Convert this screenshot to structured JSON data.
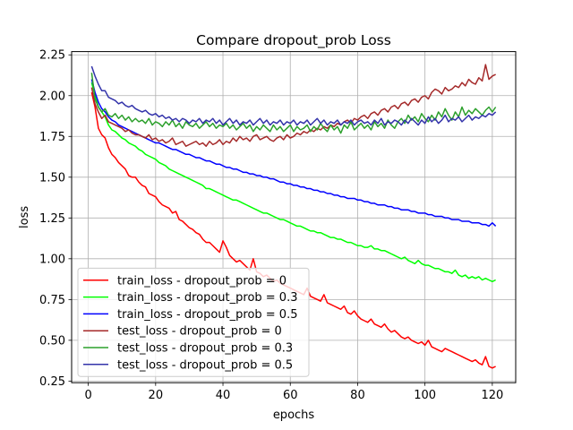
{
  "chart_data": {
    "type": "line",
    "title": "Compare dropout_prob Loss",
    "xlabel": "epochs",
    "ylabel": "loss",
    "xlim": [
      -4.95,
      126.95
    ],
    "ylim": [
      0.24,
      2.27
    ],
    "xticks": [
      0,
      20,
      40,
      60,
      80,
      100,
      120
    ],
    "yticks": [
      0.25,
      0.5,
      0.75,
      1.0,
      1.25,
      1.5,
      1.75,
      2.0,
      2.25
    ],
    "xtick_labels": [
      "0",
      "20",
      "40",
      "60",
      "80",
      "100",
      "120"
    ],
    "ytick_labels": [
      "0.25",
      "0.50",
      "0.75",
      "1.00",
      "1.25",
      "1.50",
      "1.75",
      "2.00",
      "2.25"
    ],
    "grid": true,
    "legend_position": "lower-left",
    "x_start": 1,
    "series": [
      {
        "name": "train_loss - dropout_prob = 0",
        "color": "#ff0000",
        "values": [
          2.02,
          1.93,
          1.8,
          1.76,
          1.74,
          1.68,
          1.64,
          1.62,
          1.59,
          1.57,
          1.55,
          1.51,
          1.5,
          1.5,
          1.47,
          1.45,
          1.44,
          1.4,
          1.39,
          1.38,
          1.35,
          1.33,
          1.32,
          1.31,
          1.28,
          1.29,
          1.24,
          1.23,
          1.21,
          1.19,
          1.18,
          1.16,
          1.15,
          1.12,
          1.1,
          1.1,
          1.08,
          1.06,
          1.04,
          1.11,
          1.07,
          1.02,
          1.0,
          0.98,
          0.99,
          0.97,
          0.95,
          0.93,
          1.0,
          0.92,
          0.91,
          0.89,
          0.9,
          0.88,
          0.86,
          0.87,
          0.85,
          0.84,
          0.83,
          0.82,
          0.81,
          0.8,
          0.79,
          0.78,
          0.82,
          0.77,
          0.76,
          0.75,
          0.74,
          0.78,
          0.73,
          0.72,
          0.71,
          0.7,
          0.69,
          0.71,
          0.67,
          0.66,
          0.68,
          0.65,
          0.63,
          0.62,
          0.61,
          0.63,
          0.6,
          0.59,
          0.58,
          0.6,
          0.57,
          0.55,
          0.56,
          0.54,
          0.52,
          0.51,
          0.52,
          0.5,
          0.49,
          0.48,
          0.49,
          0.47,
          0.5,
          0.46,
          0.45,
          0.44,
          0.43,
          0.45,
          0.44,
          0.43,
          0.42,
          0.41,
          0.4,
          0.39,
          0.38,
          0.37,
          0.38,
          0.36,
          0.35,
          0.4,
          0.34,
          0.33,
          0.34
        ]
      },
      {
        "name": "train_loss - dropout_prob = 0.3",
        "color": "#00ff00",
        "values": [
          2.08,
          2.0,
          1.93,
          1.9,
          1.87,
          1.82,
          1.79,
          1.78,
          1.76,
          1.74,
          1.73,
          1.71,
          1.7,
          1.69,
          1.67,
          1.66,
          1.64,
          1.63,
          1.62,
          1.61,
          1.59,
          1.58,
          1.57,
          1.55,
          1.54,
          1.53,
          1.52,
          1.51,
          1.5,
          1.49,
          1.48,
          1.47,
          1.46,
          1.45,
          1.43,
          1.43,
          1.42,
          1.41,
          1.4,
          1.39,
          1.38,
          1.37,
          1.36,
          1.36,
          1.35,
          1.34,
          1.33,
          1.32,
          1.31,
          1.3,
          1.29,
          1.28,
          1.28,
          1.27,
          1.26,
          1.25,
          1.24,
          1.24,
          1.23,
          1.22,
          1.21,
          1.2,
          1.2,
          1.19,
          1.18,
          1.17,
          1.17,
          1.16,
          1.16,
          1.15,
          1.14,
          1.13,
          1.13,
          1.12,
          1.12,
          1.11,
          1.1,
          1.1,
          1.09,
          1.08,
          1.08,
          1.07,
          1.07,
          1.08,
          1.06,
          1.06,
          1.05,
          1.05,
          1.04,
          1.03,
          1.02,
          1.01,
          1.0,
          1.01,
          0.99,
          0.98,
          0.97,
          0.99,
          0.97,
          0.96,
          0.96,
          0.95,
          0.94,
          0.94,
          0.93,
          0.92,
          0.92,
          0.91,
          0.93,
          0.9,
          0.89,
          0.9,
          0.88,
          0.89,
          0.88,
          0.89,
          0.87,
          0.88,
          0.87,
          0.86,
          0.87
        ]
      },
      {
        "name": "train_loss - dropout_prob = 0.5",
        "color": "#0000ff",
        "values": [
          2.1,
          2.02,
          1.96,
          1.92,
          1.9,
          1.87,
          1.85,
          1.84,
          1.82,
          1.81,
          1.8,
          1.79,
          1.78,
          1.77,
          1.76,
          1.75,
          1.74,
          1.73,
          1.72,
          1.71,
          1.71,
          1.7,
          1.69,
          1.68,
          1.67,
          1.67,
          1.66,
          1.65,
          1.64,
          1.64,
          1.63,
          1.62,
          1.62,
          1.61,
          1.6,
          1.6,
          1.59,
          1.58,
          1.58,
          1.57,
          1.56,
          1.56,
          1.55,
          1.55,
          1.54,
          1.53,
          1.53,
          1.52,
          1.52,
          1.51,
          1.51,
          1.5,
          1.5,
          1.49,
          1.49,
          1.48,
          1.47,
          1.47,
          1.46,
          1.46,
          1.45,
          1.45,
          1.44,
          1.44,
          1.43,
          1.43,
          1.42,
          1.42,
          1.41,
          1.41,
          1.4,
          1.4,
          1.39,
          1.39,
          1.38,
          1.38,
          1.37,
          1.37,
          1.37,
          1.36,
          1.36,
          1.35,
          1.35,
          1.34,
          1.34,
          1.33,
          1.33,
          1.33,
          1.32,
          1.32,
          1.31,
          1.31,
          1.3,
          1.3,
          1.3,
          1.29,
          1.29,
          1.28,
          1.28,
          1.28,
          1.27,
          1.27,
          1.26,
          1.26,
          1.26,
          1.25,
          1.25,
          1.24,
          1.24,
          1.24,
          1.23,
          1.23,
          1.23,
          1.22,
          1.22,
          1.22,
          1.21,
          1.21,
          1.2,
          1.22,
          1.2
        ]
      },
      {
        "name": "test_loss - dropout_prob = 0",
        "color": "#a52a2a",
        "values": [
          2.05,
          1.95,
          1.9,
          1.86,
          1.88,
          1.84,
          1.83,
          1.82,
          1.81,
          1.8,
          1.78,
          1.79,
          1.77,
          1.76,
          1.76,
          1.75,
          1.74,
          1.76,
          1.73,
          1.74,
          1.72,
          1.73,
          1.71,
          1.72,
          1.74,
          1.7,
          1.71,
          1.72,
          1.69,
          1.7,
          1.71,
          1.72,
          1.7,
          1.71,
          1.69,
          1.72,
          1.7,
          1.71,
          1.73,
          1.7,
          1.72,
          1.71,
          1.74,
          1.72,
          1.75,
          1.73,
          1.74,
          1.72,
          1.75,
          1.76,
          1.73,
          1.74,
          1.75,
          1.73,
          1.72,
          1.74,
          1.75,
          1.73,
          1.76,
          1.74,
          1.75,
          1.77,
          1.76,
          1.78,
          1.77,
          1.79,
          1.78,
          1.8,
          1.79,
          1.81,
          1.8,
          1.82,
          1.81,
          1.83,
          1.82,
          1.84,
          1.85,
          1.83,
          1.86,
          1.85,
          1.87,
          1.88,
          1.86,
          1.89,
          1.9,
          1.88,
          1.91,
          1.92,
          1.9,
          1.93,
          1.94,
          1.92,
          1.95,
          1.96,
          1.94,
          1.97,
          1.98,
          1.96,
          1.99,
          2.0,
          1.98,
          2.02,
          2.04,
          2.03,
          2.01,
          2.05,
          2.03,
          2.04,
          2.06,
          2.05,
          2.08,
          2.06,
          2.1,
          2.08,
          2.07,
          2.11,
          2.09,
          2.19,
          2.1,
          2.12,
          2.13
        ]
      },
      {
        "name": "test_loss - dropout_prob = 0.3",
        "color": "#2ca02c",
        "values": [
          2.14,
          1.98,
          1.93,
          1.9,
          1.92,
          1.88,
          1.87,
          1.89,
          1.86,
          1.88,
          1.85,
          1.87,
          1.84,
          1.86,
          1.84,
          1.85,
          1.83,
          1.86,
          1.82,
          1.84,
          1.83,
          1.81,
          1.84,
          1.82,
          1.85,
          1.81,
          1.83,
          1.8,
          1.84,
          1.82,
          1.81,
          1.83,
          1.8,
          1.82,
          1.84,
          1.81,
          1.83,
          1.8,
          1.82,
          1.81,
          1.83,
          1.8,
          1.82,
          1.79,
          1.81,
          1.83,
          1.8,
          1.82,
          1.78,
          1.81,
          1.79,
          1.82,
          1.8,
          1.78,
          1.82,
          1.79,
          1.81,
          1.78,
          1.8,
          1.82,
          1.78,
          1.81,
          1.79,
          1.8,
          1.82,
          1.78,
          1.81,
          1.79,
          1.83,
          1.8,
          1.78,
          1.82,
          1.79,
          1.81,
          1.77,
          1.82,
          1.8,
          1.84,
          1.79,
          1.81,
          1.83,
          1.8,
          1.82,
          1.79,
          1.84,
          1.81,
          1.83,
          1.8,
          1.85,
          1.82,
          1.8,
          1.84,
          1.86,
          1.83,
          1.88,
          1.85,
          1.87,
          1.84,
          1.89,
          1.86,
          1.84,
          1.88,
          1.85,
          1.9,
          1.87,
          1.92,
          1.88,
          1.85,
          1.9,
          1.87,
          1.93,
          1.88,
          1.91,
          1.89,
          1.92,
          1.9,
          1.88,
          1.91,
          1.93,
          1.9,
          1.93
        ]
      },
      {
        "name": "test_loss - dropout_prob = 0.5",
        "color": "#3333aa",
        "values": [
          2.18,
          2.12,
          2.07,
          2.03,
          2.03,
          1.99,
          1.98,
          1.97,
          1.95,
          1.96,
          1.94,
          1.93,
          1.94,
          1.92,
          1.91,
          1.9,
          1.91,
          1.89,
          1.88,
          1.89,
          1.87,
          1.88,
          1.86,
          1.87,
          1.85,
          1.86,
          1.84,
          1.86,
          1.85,
          1.83,
          1.85,
          1.84,
          1.86,
          1.83,
          1.85,
          1.84,
          1.86,
          1.83,
          1.85,
          1.82,
          1.84,
          1.86,
          1.83,
          1.85,
          1.82,
          1.84,
          1.83,
          1.85,
          1.82,
          1.84,
          1.86,
          1.83,
          1.85,
          1.82,
          1.84,
          1.83,
          1.85,
          1.82,
          1.84,
          1.83,
          1.85,
          1.82,
          1.84,
          1.83,
          1.85,
          1.82,
          1.84,
          1.86,
          1.83,
          1.85,
          1.82,
          1.84,
          1.83,
          1.85,
          1.82,
          1.84,
          1.83,
          1.85,
          1.82,
          1.84,
          1.85,
          1.83,
          1.84,
          1.82,
          1.85,
          1.83,
          1.86,
          1.82,
          1.84,
          1.83,
          1.85,
          1.84,
          1.82,
          1.85,
          1.83,
          1.86,
          1.84,
          1.82,
          1.85,
          1.83,
          1.87,
          1.84,
          1.86,
          1.83,
          1.85,
          1.88,
          1.84,
          1.86,
          1.85,
          1.87,
          1.84,
          1.86,
          1.88,
          1.85,
          1.87,
          1.86,
          1.88,
          1.87,
          1.89,
          1.88,
          1.9
        ]
      }
    ]
  }
}
